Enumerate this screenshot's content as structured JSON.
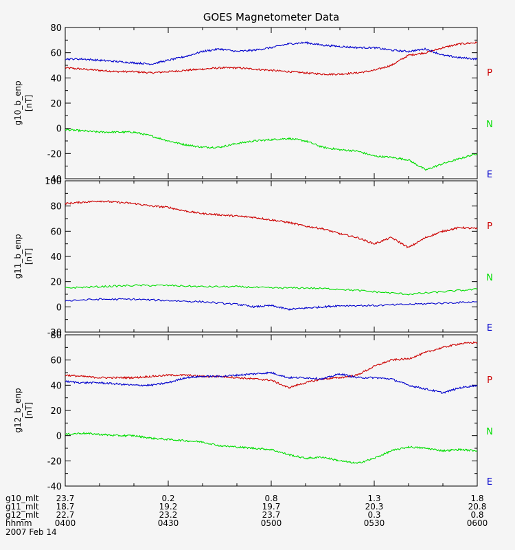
{
  "chart_data": {
    "type": "line",
    "title": "GOES Magnetometer Data",
    "x_range": [
      "0400",
      "0600"
    ],
    "x_ticks": [
      {
        "t": 0,
        "g10_mlt": "23.7",
        "g11_mlt": "18.7",
        "g12_mlt": "22.7",
        "hhmm": "0400"
      },
      {
        "t": 30,
        "g10_mlt": "0.2",
        "g11_mlt": "19.2",
        "g12_mlt": "23.2",
        "hhmm": "0430"
      },
      {
        "t": 60,
        "g10_mlt": "0.8",
        "g11_mlt": "19.7",
        "g12_mlt": "23.7",
        "hhmm": "0500"
      },
      {
        "t": 90,
        "g10_mlt": "1.3",
        "g11_mlt": "20.3",
        "g12_mlt": "0.3",
        "hhmm": "0530"
      },
      {
        "t": 120,
        "g10_mlt": "1.8",
        "g11_mlt": "20.8",
        "g12_mlt": "0.8",
        "hhmm": "0600"
      }
    ],
    "footer": {
      "row_labels": [
        "g10_mlt",
        "g11_mlt",
        "g12_mlt",
        "hhmm"
      ],
      "date": "2007 Feb 14"
    },
    "legend": [
      "P",
      "N",
      "E"
    ],
    "colors": {
      "P": "#cc0000",
      "N": "#00dd00",
      "E": "#0000cc"
    },
    "panels": [
      {
        "ylabel": "g10_b_enp",
        "units": "[nT]",
        "ylim": [
          -40,
          80
        ],
        "yticks": [
          80,
          60,
          40,
          20,
          0,
          -20,
          -40
        ],
        "series": [
          {
            "name": "P",
            "x": [
              0,
              5,
              10,
              15,
              20,
              25,
              30,
              35,
              40,
              45,
              50,
              55,
              60,
              65,
              70,
              75,
              80,
              85,
              90,
              95,
              100,
              105,
              110,
              115,
              120
            ],
            "y": [
              48,
              47,
              46,
              45,
              45,
              44,
              45,
              46,
              47,
              48,
              48,
              47,
              46,
              45,
              44,
              43,
              43,
              44,
              46,
              50,
              58,
              60,
              64,
              67,
              68
            ]
          },
          {
            "name": "N",
            "x": [
              0,
              5,
              10,
              15,
              20,
              25,
              30,
              35,
              40,
              45,
              50,
              55,
              60,
              65,
              70,
              75,
              80,
              85,
              90,
              95,
              100,
              105,
              110,
              115,
              120
            ],
            "y": [
              -1,
              -2,
              -3,
              -3,
              -3,
              -6,
              -10,
              -13,
              -15,
              -15,
              -12,
              -10,
              -9,
              -8,
              -10,
              -15,
              -17,
              -18,
              -22,
              -23,
              -25,
              -33,
              -28,
              -24,
              -20
            ]
          },
          {
            "name": "E",
            "x": [
              0,
              5,
              10,
              15,
              20,
              25,
              30,
              35,
              40,
              45,
              50,
              55,
              60,
              65,
              70,
              75,
              80,
              85,
              90,
              95,
              100,
              105,
              110,
              115,
              120
            ],
            "y": [
              55,
              55,
              54,
              53,
              52,
              51,
              54,
              57,
              61,
              63,
              61,
              62,
              64,
              67,
              68,
              66,
              65,
              64,
              64,
              62,
              61,
              63,
              58,
              56,
              55
            ]
          }
        ]
      },
      {
        "ylabel": "g11_b_enp",
        "units": "[nT]",
        "ylim": [
          -20,
          100
        ],
        "yticks": [
          100,
          80,
          60,
          40,
          20,
          0,
          -20
        ],
        "series": [
          {
            "name": "P",
            "x": [
              0,
              5,
              10,
              15,
              20,
              25,
              30,
              35,
              40,
              45,
              50,
              55,
              60,
              65,
              70,
              75,
              80,
              85,
              90,
              95,
              100,
              105,
              110,
              115,
              120
            ],
            "y": [
              82,
              83,
              84,
              83,
              82,
              80,
              79,
              76,
              74,
              73,
              72,
              71,
              69,
              67,
              64,
              62,
              58,
              55,
              50,
              55,
              47,
              55,
              60,
              63,
              62
            ]
          },
          {
            "name": "N",
            "x": [
              0,
              10,
              20,
              30,
              40,
              50,
              60,
              70,
              80,
              90,
              100,
              110,
              120
            ],
            "y": [
              15,
              16,
              17,
              17,
              16,
              16,
              15,
              15,
              14,
              12,
              10,
              12,
              14
            ]
          },
          {
            "name": "E",
            "x": [
              0,
              10,
              20,
              30,
              40,
              50,
              55,
              60,
              65,
              70,
              75,
              80,
              90,
              100,
              110,
              120
            ],
            "y": [
              5,
              6,
              6,
              5,
              4,
              2,
              0,
              1,
              -2,
              -1,
              0,
              1,
              1,
              2,
              3,
              4
            ]
          }
        ]
      },
      {
        "ylabel": "g12_b_enp",
        "units": "[nT]",
        "ylim": [
          -40,
          80
        ],
        "yticks": [
          80,
          60,
          40,
          20,
          0,
          -20,
          -40
        ],
        "series": [
          {
            "name": "P",
            "x": [
              0,
              5,
              10,
              15,
              20,
              25,
              30,
              35,
              40,
              45,
              50,
              55,
              60,
              65,
              70,
              75,
              80,
              85,
              90,
              95,
              100,
              105,
              110,
              115,
              120
            ],
            "y": [
              48,
              47,
              46,
              46,
              46,
              47,
              48,
              48,
              47,
              47,
              46,
              45,
              44,
              38,
              42,
              45,
              46,
              48,
              55,
              60,
              61,
              66,
              70,
              73,
              74
            ]
          },
          {
            "name": "E",
            "x": [
              0,
              5,
              10,
              15,
              20,
              25,
              30,
              35,
              40,
              45,
              50,
              55,
              60,
              65,
              70,
              75,
              80,
              85,
              90,
              95,
              100,
              105,
              110,
              115,
              120
            ],
            "y": [
              43,
              42,
              42,
              41,
              40,
              40,
              42,
              46,
              47,
              47,
              48,
              49,
              50,
              46,
              46,
              45,
              49,
              46,
              46,
              45,
              40,
              37,
              34,
              38,
              40
            ]
          },
          {
            "name": "N",
            "x": [
              0,
              5,
              10,
              15,
              20,
              25,
              30,
              35,
              40,
              45,
              50,
              55,
              60,
              65,
              70,
              75,
              80,
              85,
              90,
              95,
              100,
              105,
              110,
              115,
              120
            ],
            "y": [
              1,
              2,
              1,
              0,
              0,
              -2,
              -3,
              -4,
              -5,
              -8,
              -9,
              -10,
              -11,
              -15,
              -18,
              -17,
              -20,
              -22,
              -18,
              -12,
              -9,
              -10,
              -12,
              -11,
              -12
            ]
          }
        ]
      }
    ]
  }
}
